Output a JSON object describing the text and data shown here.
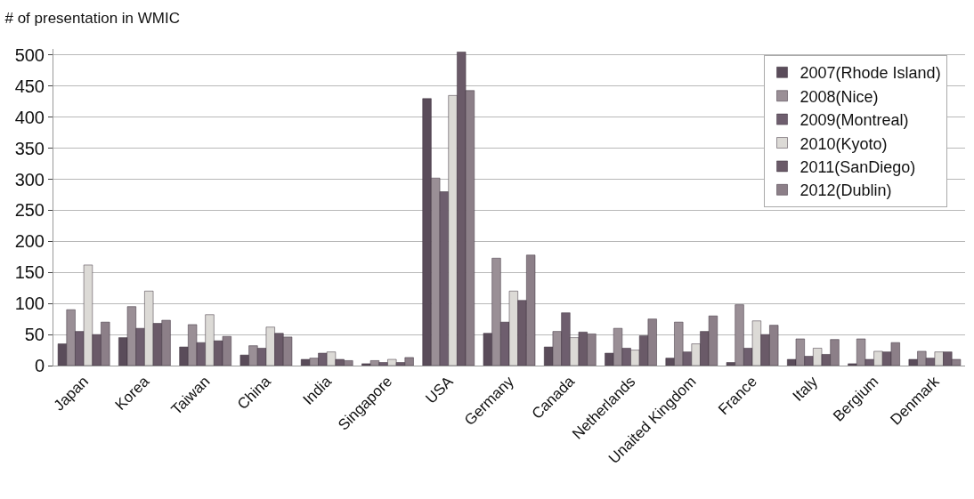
{
  "chart_data": {
    "type": "bar",
    "title": "# of presentation in WMIC",
    "categories": [
      "Japan",
      "Korea",
      "Taiwan",
      "China",
      "India",
      "Singapore",
      "USA",
      "Germany",
      "Canada",
      "Netherlands",
      "Unaited Kingdom",
      "France",
      "Italy",
      "Bergium",
      "Denmark"
    ],
    "series": [
      {
        "name": "2007(Rhode Island)",
        "color": "#5a4c5a",
        "values": [
          35,
          45,
          30,
          17,
          10,
          3,
          430,
          52,
          30,
          20,
          12,
          5,
          10,
          3,
          10
        ]
      },
      {
        "name": "2008(Nice)",
        "color": "#9a8f96",
        "values": [
          90,
          95,
          66,
          32,
          12,
          8,
          302,
          173,
          55,
          60,
          70,
          98,
          43,
          43,
          23
        ]
      },
      {
        "name": "2009(Montreal)",
        "color": "#6e5e6e",
        "values": [
          55,
          60,
          37,
          28,
          20,
          5,
          280,
          70,
          85,
          28,
          22,
          28,
          15,
          10,
          12
        ]
      },
      {
        "name": "2010(Kyoto)",
        "color": "#dcdad6",
        "values": [
          162,
          120,
          82,
          62,
          22,
          10,
          435,
          120,
          45,
          25,
          35,
          72,
          28,
          23,
          22
        ]
      },
      {
        "name": "2011(SanDiego)",
        "color": "#6a5a68",
        "values": [
          50,
          68,
          40,
          52,
          10,
          5,
          505,
          105,
          54,
          48,
          55,
          50,
          18,
          22,
          22
        ]
      },
      {
        "name": "2012(Dublin)",
        "color": "#8c7f88",
        "values": [
          70,
          73,
          47,
          46,
          8,
          13,
          443,
          178,
          51,
          75,
          80,
          65,
          42,
          37,
          10
        ]
      }
    ],
    "ylim": [
      0,
      510
    ],
    "yticks": [
      0,
      50,
      100,
      150,
      200,
      250,
      300,
      350,
      400,
      450,
      500
    ],
    "grid": "y",
    "legend": "top right"
  }
}
